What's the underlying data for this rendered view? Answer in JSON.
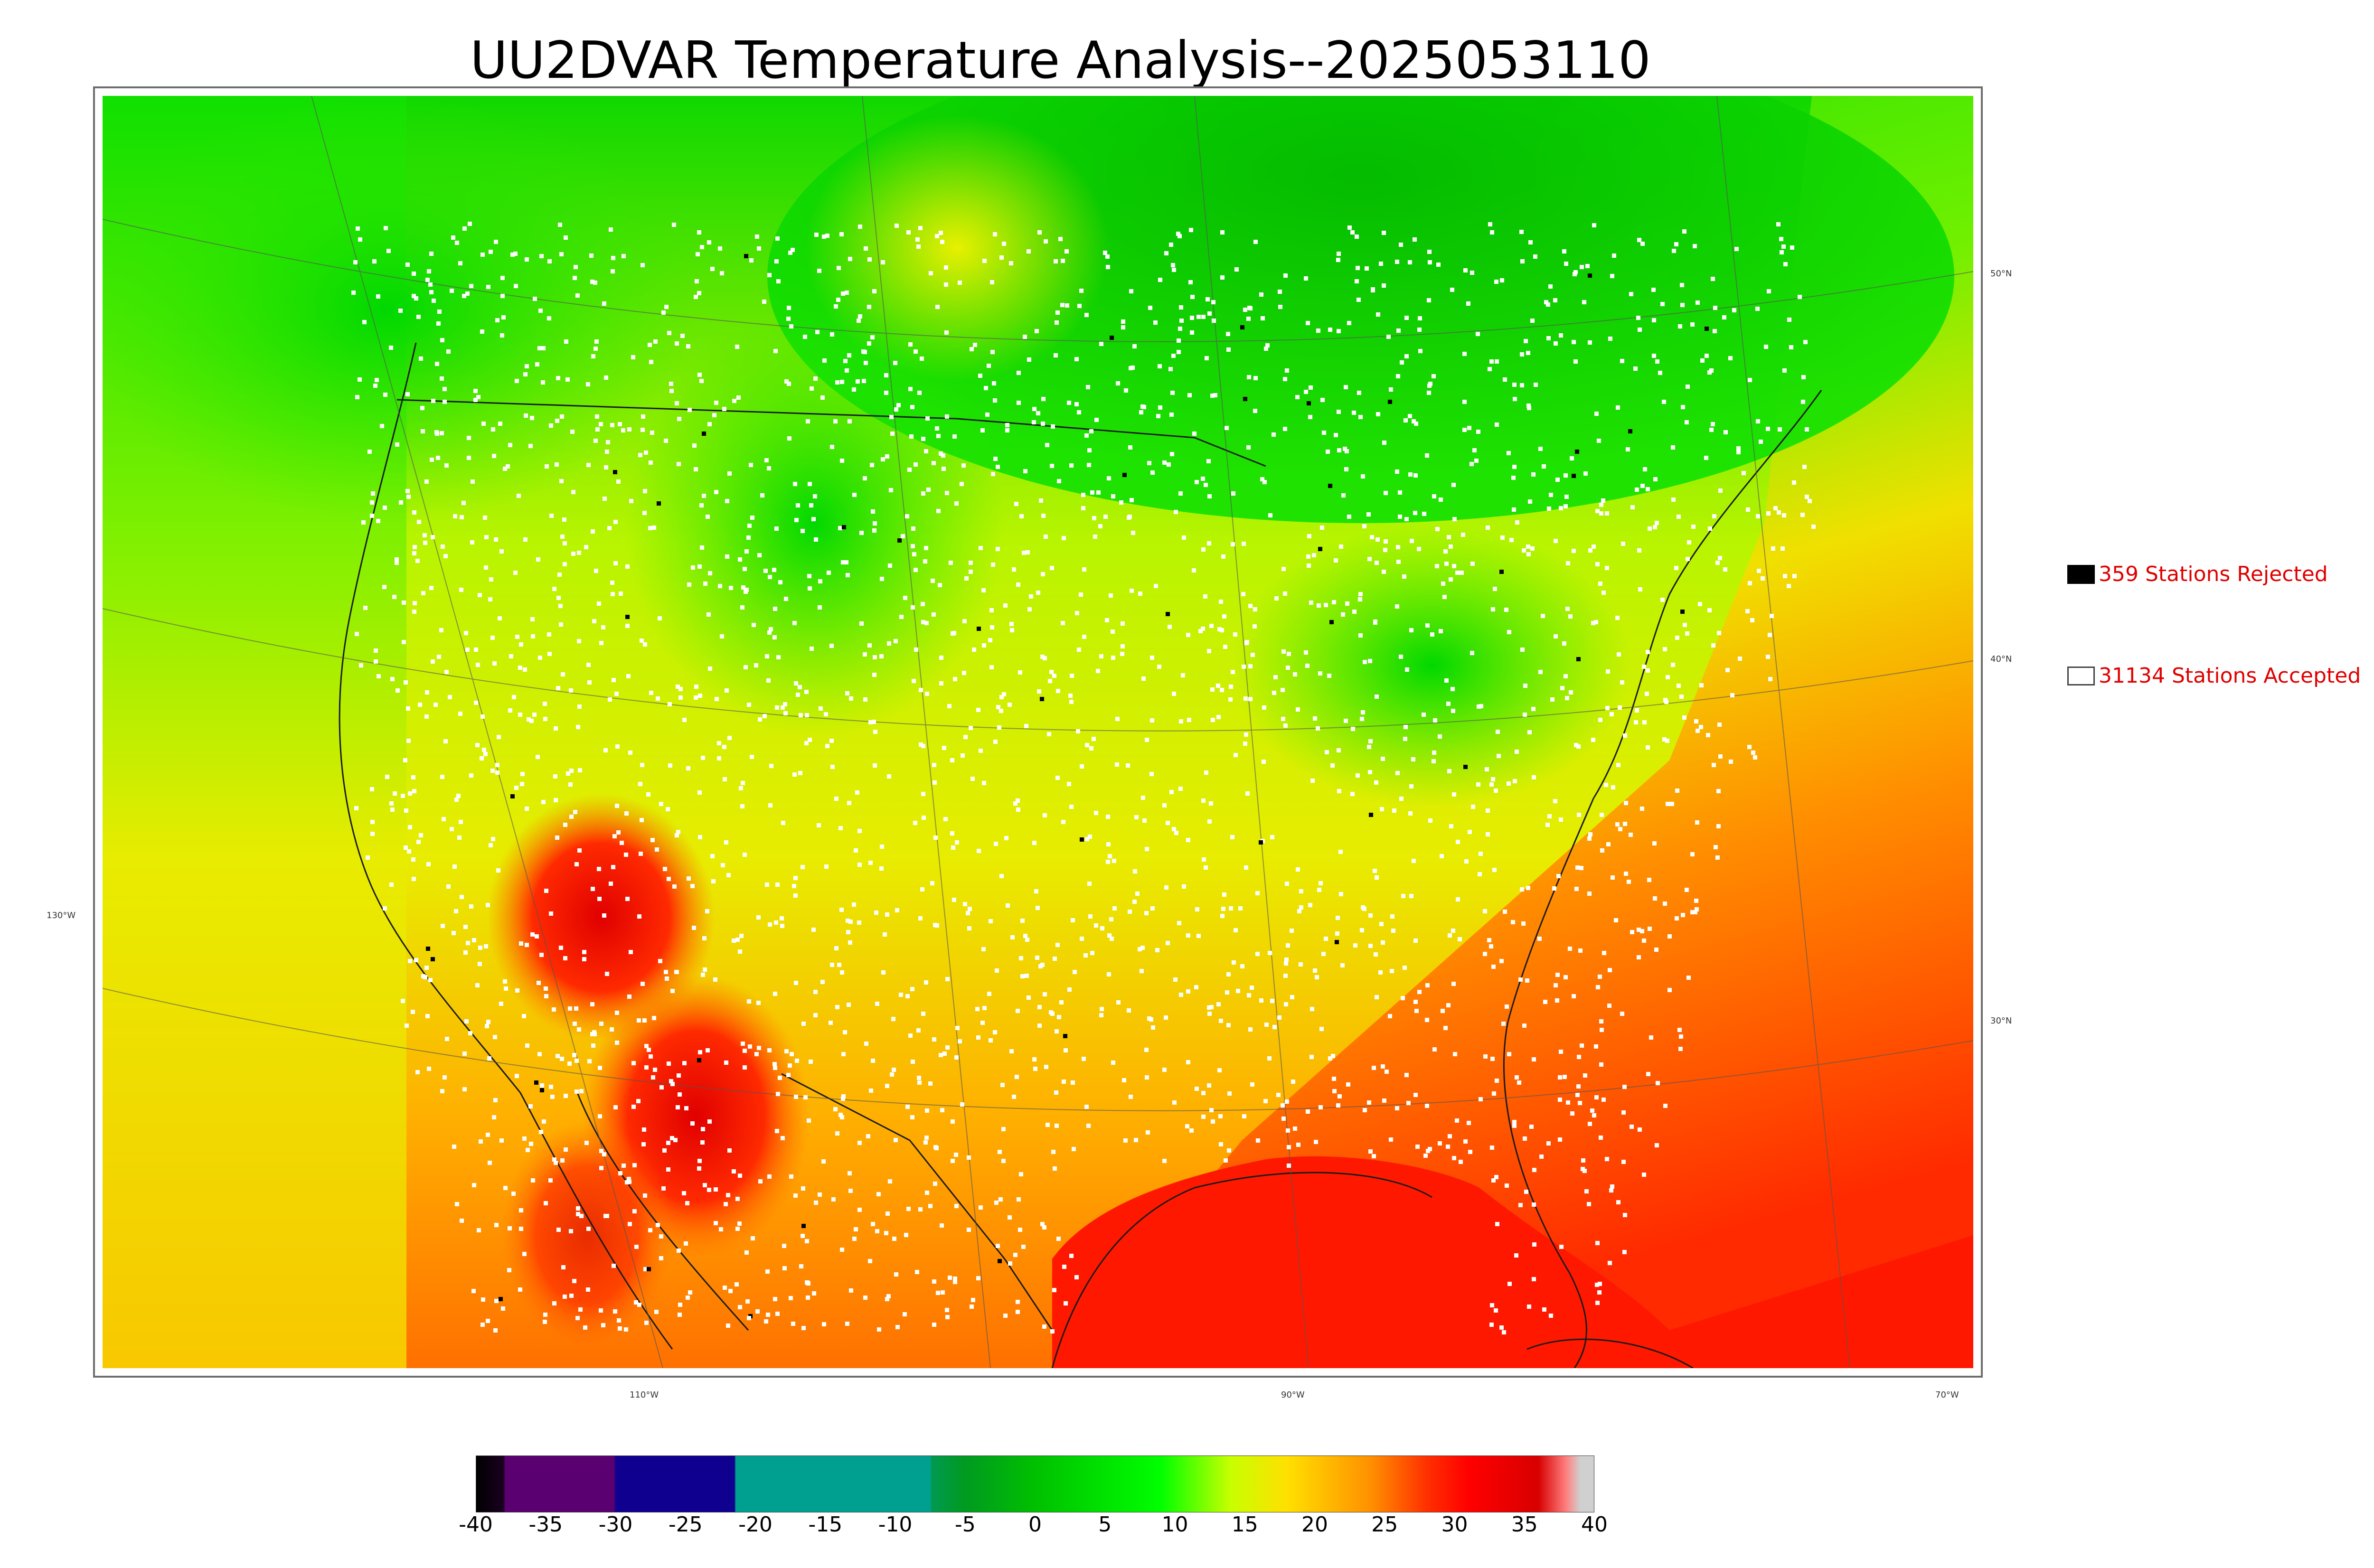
{
  "title": "UU2DVAR Temperature Analysis--2025053110",
  "legend": {
    "rejected": {
      "label": "359 Stations Rejected",
      "swatch_color": "#000000"
    },
    "accepted": {
      "label": "31134 Stations Accepted",
      "swatch_color": "#ffffff"
    }
  },
  "latitude_labels": [
    "50°N",
    "40°N",
    "30°N"
  ],
  "longitude_labels_left": [
    "130°W"
  ],
  "longitude_labels_bottom": [
    "110°W",
    "90°W",
    "70°W"
  ],
  "colorbar": {
    "ticks": [
      "-40",
      "-35",
      "-30",
      "-25",
      "-20",
      "-15",
      "-10",
      "-5",
      "0",
      "5",
      "10",
      "15",
      "20",
      "25",
      "30",
      "35",
      "40"
    ],
    "range": [
      -40,
      40
    ],
    "stops": [
      {
        "v": -40,
        "c": "#000000"
      },
      {
        "v": -38,
        "c": "#1a0020"
      },
      {
        "v": -37.9,
        "c": "#5a0070"
      },
      {
        "v": -30.1,
        "c": "#5a0070"
      },
      {
        "v": -30,
        "c": "#0f0090"
      },
      {
        "v": -21.5,
        "c": "#0f0090"
      },
      {
        "v": -21.4,
        "c": "#00a090"
      },
      {
        "v": -7.5,
        "c": "#00a090"
      },
      {
        "v": -7.4,
        "c": "#009a50"
      },
      {
        "v": -5,
        "c": "#009a20"
      },
      {
        "v": 0,
        "c": "#00c000"
      },
      {
        "v": 9,
        "c": "#00ff00"
      },
      {
        "v": 14,
        "c": "#c8ff00"
      },
      {
        "v": 18,
        "c": "#ffe000"
      },
      {
        "v": 24,
        "c": "#ff9000"
      },
      {
        "v": 28,
        "c": "#ff3000"
      },
      {
        "v": 31,
        "c": "#ff0000"
      },
      {
        "v": 36,
        "c": "#d80000"
      },
      {
        "v": 38,
        "c": "#ff8080"
      },
      {
        "v": 39,
        "c": "#d0d0d0"
      },
      {
        "v": 40,
        "c": "#d0d0d0"
      }
    ]
  },
  "colors": {
    "land_green": "#00e000",
    "land_yellow": "#e8f000",
    "warm_orange": "#ff9a00",
    "hot_red": "#ff1a00",
    "station_accepted": "#ffffff",
    "station_rejected": "#000000"
  }
}
